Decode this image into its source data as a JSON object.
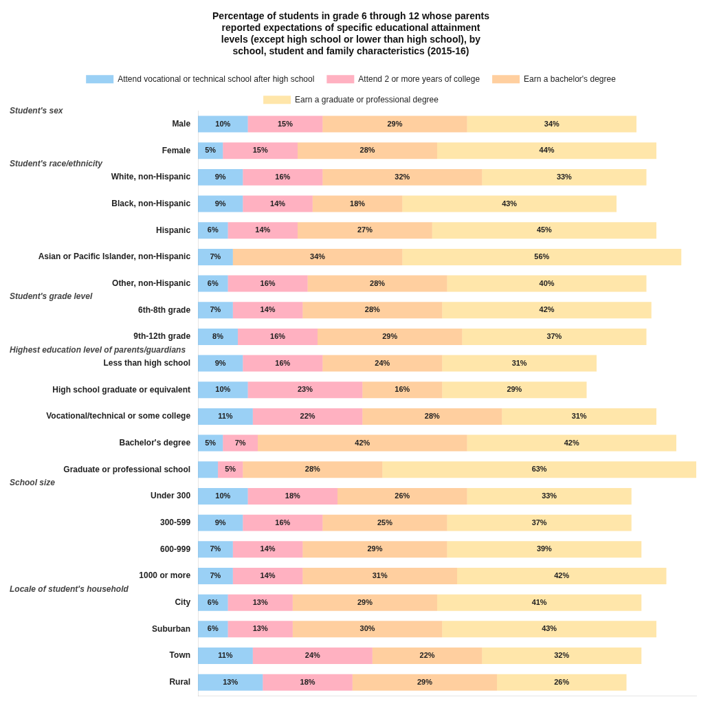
{
  "chart_data": {
    "type": "bar",
    "orientation": "horizontal",
    "stacked": true,
    "title": [
      "Percentage of students in grade 6 through 12 whose parents",
      "reported expectations of specific educational attainment",
      "levels (except high school or lower than high school), by",
      "school, student and family characteristics (2015-16)"
    ],
    "categories": [
      "Male",
      "Female",
      "White, non-Hispanic",
      "Black, non-Hispanic",
      "Hispanic",
      "Asian or Pacific Islander, non-Hispanic",
      "Other, non-Hispanic",
      "6th-8th grade",
      "9th-12th grade",
      "Less than high school",
      "High school graduate or equivalent",
      "Vocational/technical or some college",
      "Bachelor's degree",
      "Graduate or professional school",
      "Under 300",
      "300-599",
      "600-999",
      "1000 or more",
      "City",
      "Suburban",
      "Town",
      "Rural"
    ],
    "series": [
      {
        "name": "Attend vocational or technical school after high school",
        "values": [
          10,
          5,
          9,
          9,
          6,
          7,
          6,
          7,
          8,
          9,
          10,
          11,
          5,
          4,
          10,
          9,
          7,
          7,
          6,
          6,
          11,
          13
        ],
        "value_labels": [
          "10%",
          "5%",
          "9%",
          "9%",
          "6%",
          "7%",
          "6%",
          "7%",
          "8%",
          "9%",
          "10%",
          "11%",
          "5%",
          null,
          "10%",
          "9%",
          "7%",
          "7%",
          "6%",
          "6%",
          "11%",
          "13%"
        ]
      },
      {
        "name": "Attend 2 or more years of college",
        "values": [
          15,
          15,
          16,
          14,
          14,
          0,
          16,
          14,
          16,
          16,
          23,
          22,
          7,
          5,
          18,
          16,
          14,
          14,
          13,
          13,
          24,
          18
        ],
        "value_labels": [
          "15%",
          "15%",
          "16%",
          "14%",
          "14%",
          null,
          "16%",
          "14%",
          "16%",
          "16%",
          "23%",
          "22%",
          "7%",
          "5%",
          "18%",
          "16%",
          "14%",
          "14%",
          "13%",
          "13%",
          "24%",
          "18%"
        ]
      },
      {
        "name": "Earn a bachelor's degree",
        "values": [
          29,
          28,
          32,
          18,
          27,
          34,
          28,
          28,
          29,
          24,
          16,
          28,
          42,
          28,
          26,
          25,
          29,
          31,
          29,
          30,
          22,
          29
        ],
        "value_labels": [
          "29%",
          "28%",
          "32%",
          "18%",
          "27%",
          "34%",
          "28%",
          "28%",
          "29%",
          "24%",
          "16%",
          "28%",
          "42%",
          "28%",
          "26%",
          "25%",
          "29%",
          "31%",
          "29%",
          "30%",
          "22%",
          "29%"
        ]
      },
      {
        "name": "Earn a graduate or professional degree",
        "values": [
          34,
          44,
          33,
          43,
          45,
          56,
          40,
          42,
          37,
          31,
          29,
          31,
          42,
          63,
          33,
          37,
          39,
          42,
          41,
          43,
          32,
          26
        ],
        "value_labels": [
          "34%",
          "44%",
          "33%",
          "43%",
          "45%",
          "56%",
          "40%",
          "42%",
          "37%",
          "31%",
          "29%",
          "31%",
          "42%",
          "63%",
          "33%",
          "37%",
          "39%",
          "42%",
          "41%",
          "43%",
          "32%",
          "26%"
        ]
      }
    ],
    "annotations": [
      {
        "text": "Student's sex",
        "category": "Male"
      },
      {
        "text": "Student's race/ethnicity",
        "category": "White, non-Hispanic"
      },
      {
        "text": "Student's grade level",
        "category": "6th-8th grade"
      },
      {
        "text": "Highest education level of parents/guardians",
        "category": "Less than high school"
      },
      {
        "text": "School size",
        "category": "Under 300"
      },
      {
        "text": "Locale of student's household",
        "category": "City"
      }
    ],
    "xlim": [
      0,
      100
    ],
    "xticks": [],
    "grid": false,
    "legend": "top",
    "data_labels": true,
    "tick_labels": "y"
  }
}
